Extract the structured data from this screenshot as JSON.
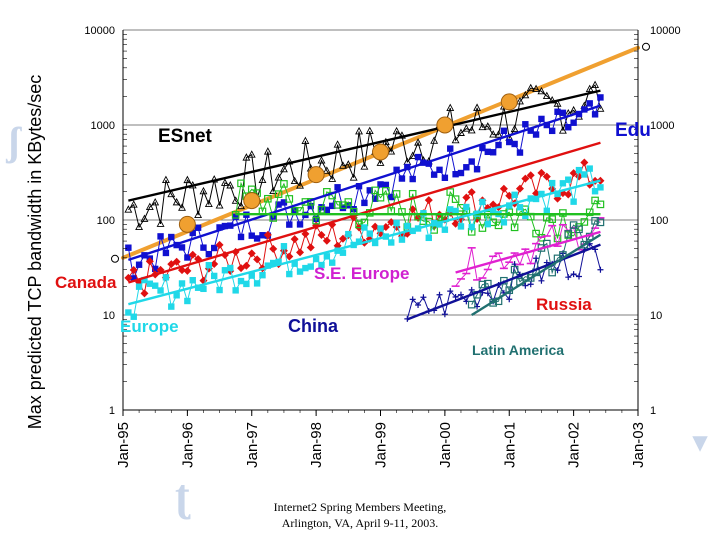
{
  "footer": {
    "line1": "Internet2 Spring Members Meeting,",
    "line2": "Arlington, VA, April 9-11, 2003."
  },
  "chart_data": {
    "type": "line",
    "title": "",
    "ylabel": "Max predicted TCP bandwidth in KBytes/sec",
    "xlabel": "",
    "y_scale": "log",
    "ylim": [
      1,
      10000
    ],
    "y_ticks": [
      "1",
      "10",
      "100",
      "1000",
      "10000"
    ],
    "x_ticks": [
      "Jan-95",
      "Jan-96",
      "Jan-97",
      "Jan-98",
      "Jan-99",
      "Jan-00",
      "Jan-01",
      "Jan-02",
      "Jan-03"
    ],
    "xlim": [
      "1995-01",
      "2003-01"
    ],
    "grid": "horizontal",
    "colors": {
      "esnet": "#000000",
      "edu": "#1010d0",
      "canada": "#e01010",
      "se_europe": "#20c020",
      "europe": "#20d8e8",
      "china": "#101098",
      "russia": "#e020d0",
      "latin_america": "#207070",
      "trend": "#f0a030"
    },
    "labels": [
      {
        "text": "ESnet",
        "color": "#000000"
      },
      {
        "text": "Edu",
        "color": "#1010d0"
      },
      {
        "text": "Canada",
        "color": "#e01010"
      },
      {
        "text": "S.E. Europe",
        "color": "#d020d0"
      },
      {
        "text": "Europe",
        "color": "#20d8e8"
      },
      {
        "text": "China",
        "color": "#101098"
      },
      {
        "text": "Russia",
        "color": "#e01010"
      },
      {
        "text": "Latin America",
        "color": "#207070"
      }
    ],
    "trend_markers": [
      {
        "x": "1996-01",
        "y": 90
      },
      {
        "x": "1997-01",
        "y": 160
      },
      {
        "x": "1998-01",
        "y": 300
      },
      {
        "x": "1999-01",
        "y": 520
      },
      {
        "x": "2000-01",
        "y": 1000
      },
      {
        "x": "2001-01",
        "y": 1750
      }
    ],
    "series": [
      {
        "key": "esnet",
        "marker": "triangle",
        "start": "1995-02",
        "end": "2002-06",
        "fit_start": 160,
        "fit_end": 2300,
        "y_start": 130,
        "y_end": 2000
      },
      {
        "key": "edu",
        "marker": "square",
        "start": "1995-02",
        "end": "2002-06",
        "fit_start": 38,
        "fit_end": 1600,
        "y_start": 35,
        "y_end": 1300
      },
      {
        "key": "canada",
        "marker": "diamond",
        "start": "1995-02",
        "end": "2002-06",
        "fit_start": 22,
        "fit_end": 650,
        "y_start": 22,
        "y_end": 300
      },
      {
        "key": "se_europe",
        "marker": "square-open",
        "start": "1996-10",
        "end": "2002-06",
        "fit_start": 115,
        "fit_end": 115,
        "y_start": 160,
        "y_end": 100
      },
      {
        "key": "europe",
        "marker": "square",
        "start": "1995-02",
        "end": "2002-06",
        "fit_start": 13,
        "fit_end": 260,
        "y_start": 14,
        "y_end": 260
      },
      {
        "key": "china",
        "marker": "plus",
        "start": "1999-06",
        "end": "2002-06",
        "fit_start": 9,
        "fit_end": 55,
        "y_start": 10,
        "y_end": 45
      },
      {
        "key": "russia",
        "marker": "dash",
        "start": "2000-03",
        "end": "2002-06",
        "fit_start": 28,
        "fit_end": 75,
        "y_start": 30,
        "y_end": 85
      },
      {
        "key": "latin_america",
        "marker": "square-open",
        "start": "2000-06",
        "end": "2002-06",
        "fit_start": 10,
        "fit_end": 70,
        "y_start": 12,
        "y_end": 90
      }
    ],
    "orange_trend": {
      "x_start": "1995-01",
      "y_start": 40,
      "x_end": "2003-01",
      "y_end": 6500
    }
  }
}
